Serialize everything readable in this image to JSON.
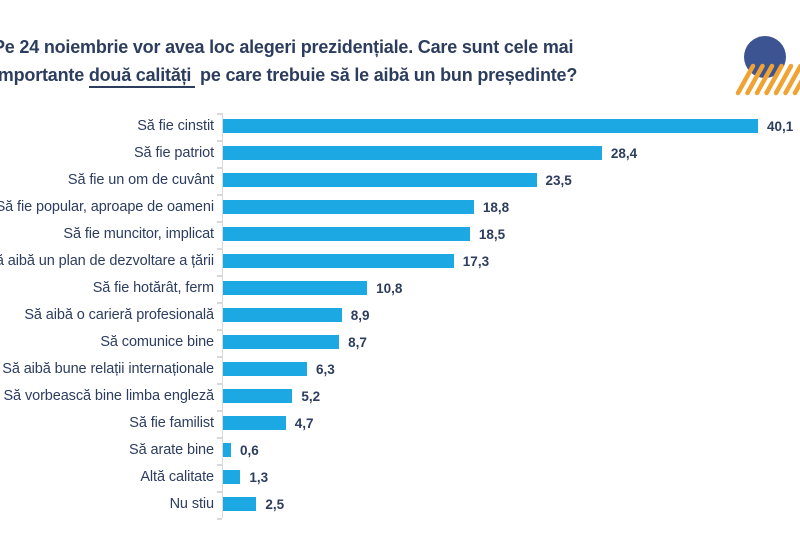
{
  "header": {
    "title_line1": "Pe 24 noiembrie vor avea loc alegeri prezidențiale. Care sunt cele mai",
    "title_line2_pre": "importante ",
    "title_line2_underline": "două calități",
    "title_line2_post": " pe care trebuie să le aibă un bun președinte?"
  },
  "colors": {
    "text_navy": "#2C3D5E",
    "bar_blue": "#1BA8E3",
    "axis_gray": "#D9D9D9",
    "logo_navy": "#3D5493",
    "logo_orange": "#F0A232"
  },
  "chart_data": {
    "type": "bar",
    "orientation": "horizontal",
    "title": "Pe 24 noiembrie vor avea loc alegeri prezidențiale. Care sunt cele mai importante două calități pe care trebuie să le aibă un bun președinte?",
    "categories": [
      "Să fie cinstit",
      "Să fie patriot",
      "Să fie un om de cuvânt",
      "Să fie popular, aproape de oameni",
      "Să fie muncitor, implicat",
      "Să aibă un plan de dezvoltare a țării",
      "Să fie hotărât, ferm",
      "Să aibă o carieră profesională",
      "Să comunice bine",
      "Să aibă bune relații internaționale",
      "Să vorbească bine limba engleză",
      "Să fie familist",
      "Să arate bine",
      "Altă calitate",
      "Nu stiu"
    ],
    "values": [
      40.1,
      28.4,
      23.5,
      18.8,
      18.5,
      17.3,
      10.8,
      8.9,
      8.7,
      6.3,
      5.2,
      4.7,
      0.6,
      1.3,
      2.5
    ],
    "value_labels": [
      "40,1",
      "28,4",
      "23,5",
      "18,8",
      "18,5",
      "17,3",
      "10,8",
      "8,9",
      "8,7",
      "6,3",
      "5,2",
      "4,7",
      "0,6",
      "1,3",
      "2,5"
    ],
    "xlabel": "",
    "ylabel": "",
    "xlim": [
      0,
      40.1
    ],
    "grid": false,
    "legend": false,
    "value_format": "comma-decimal",
    "bar_color": "#1BA8E3",
    "axis_color": "#D9D9D9"
  }
}
